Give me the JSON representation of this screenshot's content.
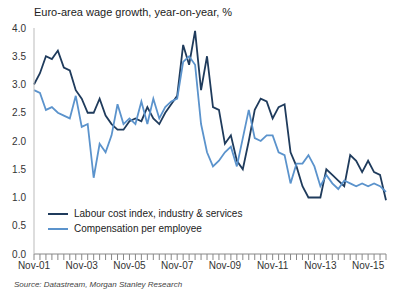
{
  "chart_data": {
    "type": "line",
    "title": "Euro-area wage growth, year-on-year, %",
    "source": "Source: Datastream,  Morgan Stanley Research",
    "categories": [
      "Nov-01",
      null,
      null,
      null,
      null,
      null,
      null,
      null,
      "Nov-03",
      null,
      null,
      null,
      null,
      null,
      null,
      null,
      "Nov-05",
      null,
      null,
      null,
      null,
      null,
      null,
      null,
      "Nov-07",
      null,
      null,
      null,
      null,
      null,
      null,
      null,
      "Nov-09",
      null,
      null,
      null,
      null,
      null,
      null,
      null,
      "Nov-11",
      null,
      null,
      null,
      null,
      null,
      null,
      null,
      "Nov-13",
      null,
      null,
      null,
      null,
      null,
      null,
      null,
      "Nov-15",
      null,
      null,
      null
    ],
    "series": [
      {
        "name": "Labour cost index, industry & services",
        "color": "#1f3b5c",
        "values": [
          3.0,
          3.2,
          3.5,
          3.45,
          3.6,
          3.3,
          3.25,
          2.9,
          2.75,
          2.5,
          2.5,
          2.75,
          2.45,
          2.3,
          2.2,
          2.2,
          2.35,
          2.4,
          2.35,
          2.6,
          2.4,
          2.3,
          2.5,
          2.65,
          2.8,
          3.7,
          3.35,
          3.95,
          2.9,
          3.5,
          2.6,
          2.55,
          1.95,
          2.1,
          1.65,
          1.5,
          2.0,
          2.55,
          2.75,
          2.7,
          2.4,
          2.6,
          2.65,
          1.8,
          1.55,
          1.2,
          1.0,
          1.0,
          1.0,
          1.5,
          1.4,
          1.3,
          1.2,
          1.75,
          1.65,
          1.45,
          1.65,
          1.45,
          1.4,
          0.95
        ]
      },
      {
        "name": "Compensation per employee",
        "color": "#5b93cc",
        "values": [
          2.9,
          2.85,
          2.55,
          2.6,
          2.5,
          2.45,
          2.4,
          2.8,
          2.25,
          2.3,
          1.35,
          1.95,
          1.8,
          2.1,
          2.65,
          2.3,
          2.4,
          2.3,
          2.7,
          2.3,
          2.75,
          2.4,
          2.6,
          2.7,
          2.75,
          3.4,
          3.5,
          3.35,
          2.3,
          1.8,
          1.55,
          1.65,
          1.8,
          1.9,
          1.55,
          2.05,
          2.55,
          2.05,
          2.0,
          2.1,
          2.1,
          1.8,
          1.75,
          1.25,
          1.6,
          1.6,
          1.75,
          1.55,
          1.2,
          1.4,
          1.25,
          1.15,
          1.3,
          1.25,
          1.2,
          1.25,
          1.2,
          1.25,
          1.2,
          1.1
        ]
      }
    ],
    "ylim": [
      0,
      4
    ],
    "yticks": [
      {
        "value": 0,
        "label": "0.0"
      },
      {
        "value": 0.5,
        "label": "0.5"
      },
      {
        "value": 1,
        "label": "1.0"
      },
      {
        "value": 1.5,
        "label": "1.5"
      },
      {
        "value": 2,
        "label": "2.0"
      },
      {
        "value": 2.5,
        "label": "2.5"
      },
      {
        "value": 3,
        "label": "3.0"
      },
      {
        "value": 3.5,
        "label": "3.5"
      },
      {
        "value": 4,
        "label": "4.0"
      }
    ],
    "grid": false,
    "legend": "lower left"
  }
}
